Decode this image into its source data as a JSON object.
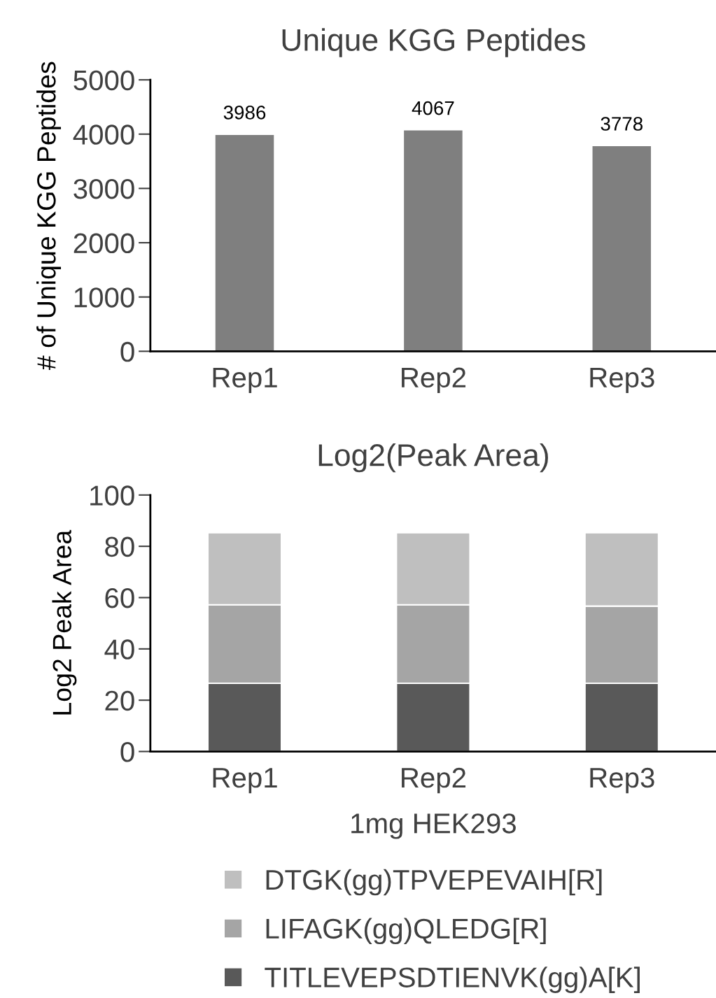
{
  "chart_data": [
    {
      "type": "bar",
      "title": "Unique KGG Peptides",
      "ylabel": "# of Unique KGG Peptides",
      "categories": [
        "Rep1",
        "Rep2",
        "Rep3"
      ],
      "values": [
        3986,
        4067,
        3778
      ],
      "color": "#7f7f7f",
      "data_labels": true,
      "ylim": [
        0,
        5000
      ],
      "yticks": [
        0,
        1000,
        2000,
        3000,
        4000,
        5000
      ],
      "grid": false,
      "legend": false
    },
    {
      "type": "bar",
      "title": "Log2(Peak Area)",
      "ylabel": "Log2 Peak Area",
      "xlabel": "1mg HEK293",
      "categories": [
        "Rep1",
        "Rep2",
        "Rep3"
      ],
      "stacked": true,
      "ylim": [
        0,
        100
      ],
      "yticks": [
        0,
        20,
        40,
        60,
        80,
        100
      ],
      "grid": false,
      "legend": "bottom",
      "series": [
        {
          "name": "TITLEVEPSDTIENVK(gg)A[K]",
          "color": "#595959",
          "values": [
            26.6,
            26.6,
            26.6
          ]
        },
        {
          "name": "LIFAGK(gg)QLEDG[R]",
          "color": "#a5a5a5",
          "values": [
            30.6,
            30.6,
            30.1
          ]
        },
        {
          "name": "DTGK(gg)TPVEPEVAIH[R]",
          "color": "#bfbfbf",
          "values": [
            28.1,
            28.1,
            28.6
          ]
        }
      ]
    }
  ]
}
